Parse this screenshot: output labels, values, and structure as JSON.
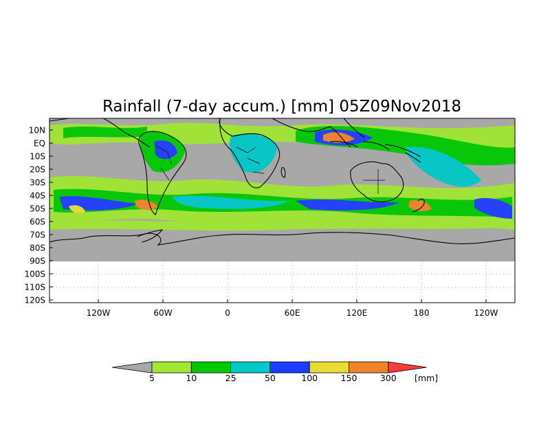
{
  "title": "Rainfall (7-day accum.) [mm] 05Z09Nov2018",
  "map": {
    "lat_labels": [
      "10N",
      "EQ",
      "10S",
      "20S",
      "30S",
      "40S",
      "50S",
      "60S",
      "70S",
      "80S",
      "90S",
      "100S",
      "110S",
      "120S"
    ],
    "lon_labels": [
      "120W",
      "60W",
      "0",
      "60E",
      "120E",
      "180",
      "120W"
    ],
    "missing_color": "#a8a8a8",
    "coastline_color": "#000000"
  },
  "colorbar": {
    "labels": [
      "5",
      "10",
      "25",
      "50",
      "100",
      "150",
      "300"
    ],
    "unit": "[mm]",
    "under_color": "#a8a8a8",
    "colors": [
      "#a0e632",
      "#00c800",
      "#00c8c8",
      "#1e3cff",
      "#e6dc32",
      "#f08228",
      "#fa3c3c"
    ]
  }
}
